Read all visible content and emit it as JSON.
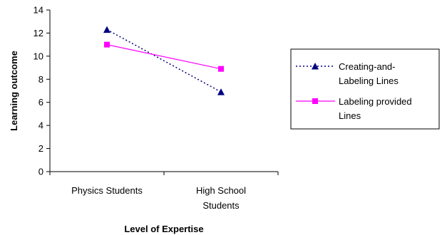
{
  "chart_data": {
    "type": "line",
    "title": "",
    "xlabel": "Level of Expertise",
    "ylabel": "Learning outcome",
    "categories": [
      [
        "Physics Students"
      ],
      [
        "High School",
        "Students"
      ]
    ],
    "ylim": [
      0,
      14
    ],
    "yticks": [
      0,
      2,
      4,
      6,
      8,
      10,
      12,
      14
    ],
    "grid": false,
    "legend_position": "right",
    "series": [
      {
        "name": [
          "Creating-and-",
          "Labeling Lines"
        ],
        "values": [
          12.3,
          6.9
        ],
        "color": "#000080",
        "line_style": "dotted",
        "marker": "triangle"
      },
      {
        "name": [
          "Labeling provided",
          "Lines"
        ],
        "values": [
          11.0,
          8.9
        ],
        "color": "#ff00ff",
        "line_style": "solid",
        "marker": "square"
      }
    ]
  }
}
